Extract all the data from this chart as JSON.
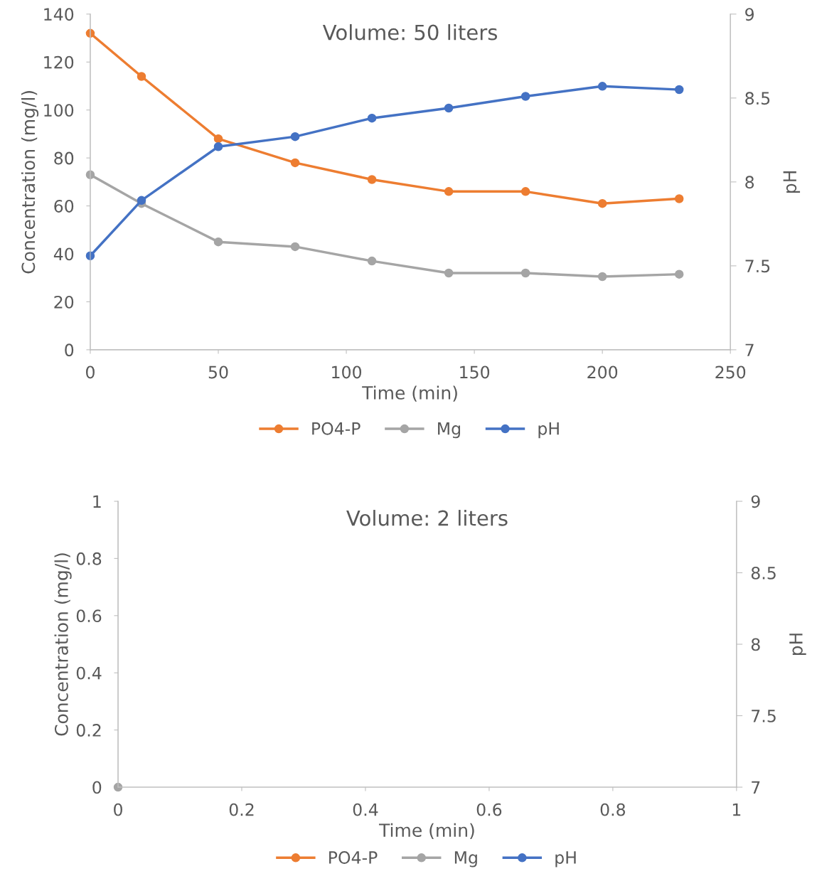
{
  "chart_data": [
    {
      "type": "line",
      "title": "Volume: 50 liters",
      "xlabel": "Time (min)",
      "ylabel": "Concentration (mg/l)",
      "y2label": "pH",
      "x": [
        0,
        20,
        50,
        80,
        110,
        140,
        170,
        200,
        230
      ],
      "series": [
        {
          "name": "PO4-P",
          "color": "#ed7d31",
          "values": [
            132,
            114,
            88,
            78,
            71,
            66,
            66,
            61,
            63
          ]
        },
        {
          "name": "Mg",
          "color": "#a5a5a5",
          "values": [
            73,
            61,
            45,
            43,
            37,
            32,
            32,
            30.5,
            31.5
          ]
        },
        {
          "name": "pH",
          "color": "#4472c4",
          "axis": "y2",
          "values": [
            7.56,
            7.89,
            8.21,
            8.27,
            8.38,
            8.44,
            8.51,
            8.57,
            8.55
          ]
        }
      ],
      "xlim": [
        0,
        250
      ],
      "xticks": [
        0,
        50,
        100,
        150,
        200,
        250
      ],
      "ylim": [
        0,
        140
      ],
      "yticks": [
        0,
        20,
        40,
        60,
        80,
        100,
        120,
        140
      ],
      "y2lim": [
        7,
        9
      ],
      "y2ticks": [
        7,
        7.5,
        8,
        8.5,
        9
      ],
      "marker": "circle",
      "line_style": "solid",
      "grid": false,
      "legend": "bottom"
    },
    {
      "type": "line",
      "title": "Volume: 2 liters",
      "xlabel": "Time (min)",
      "ylabel": "Concentration (mg/l)",
      "y2label": "pH",
      "x": [
        0
      ],
      "series": [
        {
          "name": "PO4-P",
          "color": "#ed7d31",
          "values": [
            null
          ]
        },
        {
          "name": "Mg",
          "color": "#a5a5a5",
          "values": [
            0
          ]
        },
        {
          "name": "pH",
          "color": "#4472c4",
          "axis": "y2",
          "values": [
            null
          ]
        }
      ],
      "xlim": [
        0,
        1
      ],
      "xticks": [
        0,
        0.2,
        0.4,
        0.6,
        0.8,
        1
      ],
      "ylim": [
        0,
        1
      ],
      "yticks": [
        0,
        0.2,
        0.4,
        0.6,
        0.8,
        1
      ],
      "y2lim": [
        7,
        9
      ],
      "y2ticks": [
        7,
        7.5,
        8,
        8.5,
        9
      ],
      "marker": "circle",
      "line_style": "solid",
      "grid": false,
      "legend": "bottom"
    }
  ]
}
